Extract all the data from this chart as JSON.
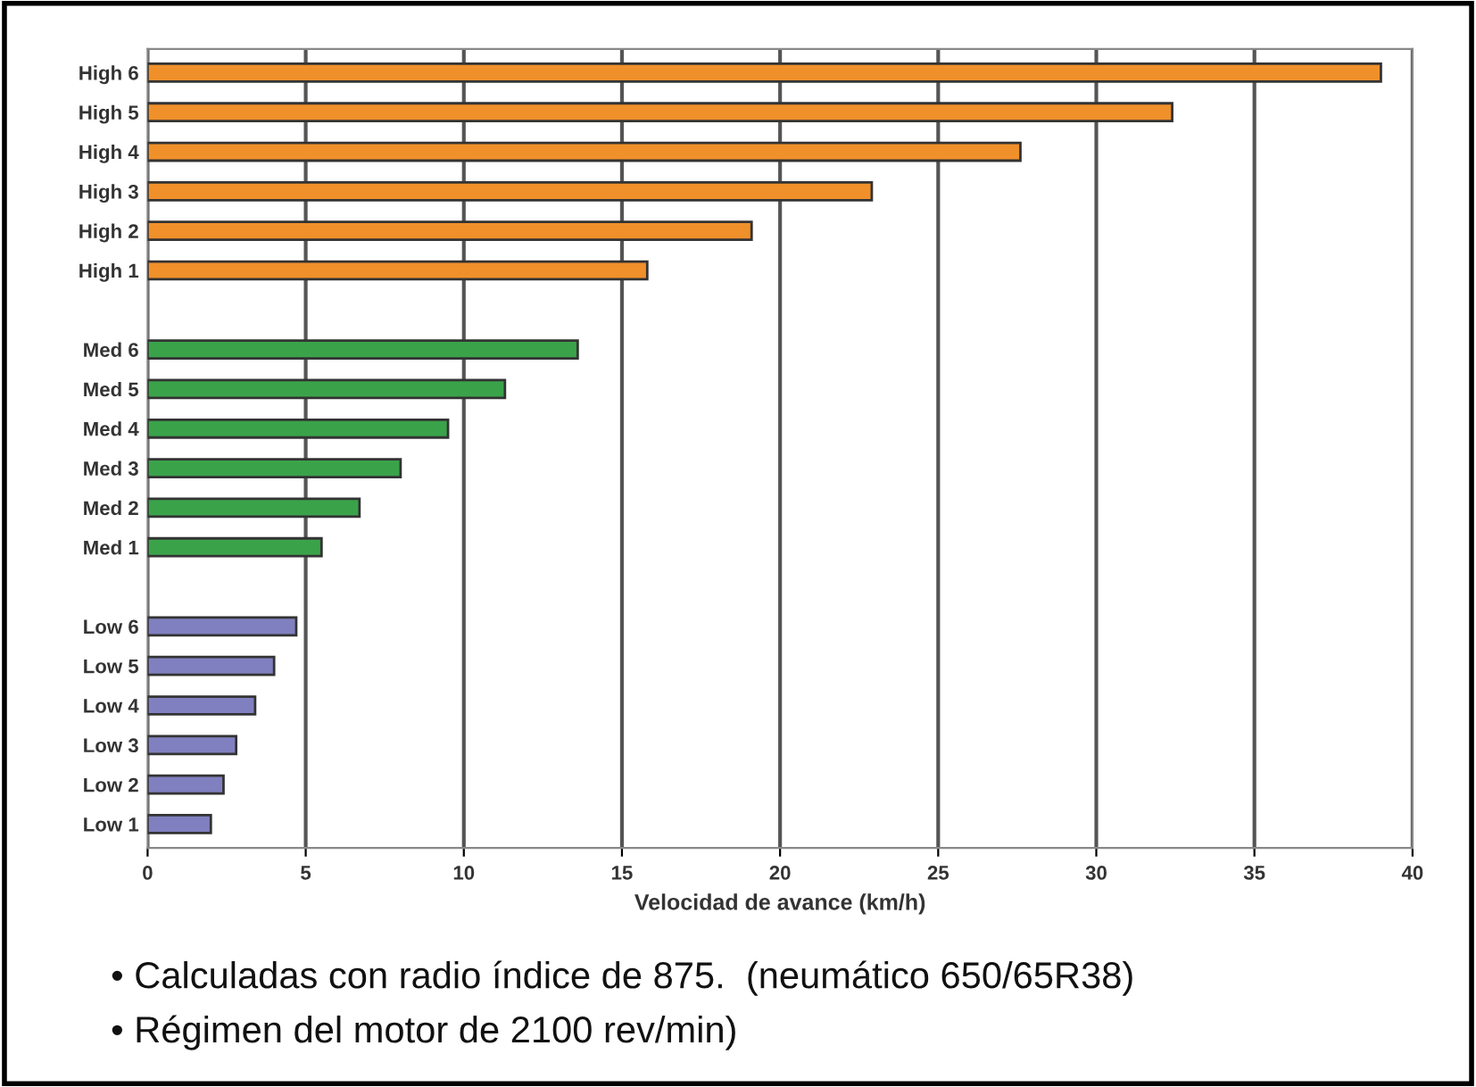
{
  "chart_data": {
    "type": "bar",
    "orientation": "horizontal",
    "xlabel": "Velocidad de avance (km/h)",
    "categories": [
      "High 6",
      "High 5",
      "High 4",
      "High 3",
      "High 2",
      "High 1",
      null,
      "Med 6",
      "Med 5",
      "Med 4",
      "Med 3",
      "Med 2",
      "Med 1",
      null,
      "Low 6",
      "Low 5",
      "Low 4",
      "Low 3",
      "Low 2",
      "Low 1"
    ],
    "values": [
      39.0,
      32.4,
      27.6,
      22.9,
      19.1,
      15.8,
      null,
      13.6,
      11.3,
      9.5,
      8.0,
      6.7,
      5.5,
      null,
      4.7,
      4.0,
      3.4,
      2.8,
      2.4,
      2.0
    ],
    "colors": [
      "#f0902a",
      "#f0902a",
      "#f0902a",
      "#f0902a",
      "#f0902a",
      "#f0902a",
      null,
      "#3aa34a",
      "#3aa34a",
      "#3aa34a",
      "#3aa34a",
      "#3aa34a",
      "#3aa34a",
      null,
      "#8080c0",
      "#8080c0",
      "#8080c0",
      "#8080c0",
      "#8080c0",
      "#8080c0"
    ],
    "xlim": [
      0,
      40
    ],
    "xticks": [
      0,
      5,
      10,
      15,
      20,
      25,
      30,
      35,
      40
    ],
    "grid": "x",
    "annotations": [
      "• Calculadas con radio índice de 875.  (neumático 650/65R38)",
      "• Régimen del motor de 2100 rev/min)"
    ]
  }
}
